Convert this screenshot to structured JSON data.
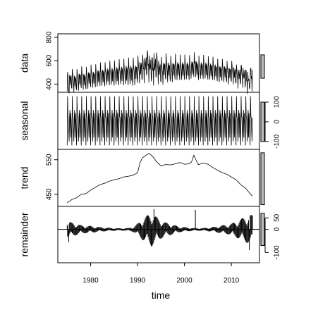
{
  "chart_data": {
    "type": "line",
    "x_axis": {
      "label": "time",
      "range": [
        1973,
        2016
      ],
      "ticks": [
        1980,
        1990,
        2000,
        2010
      ],
      "tick_labels": [
        "1980",
        "1990",
        "2000",
        "2010"
      ]
    },
    "time_start": 1975.0,
    "frequency": 12,
    "seasonal_pattern": [
      -120,
      130,
      30,
      20,
      -50,
      -100,
      20,
      60,
      -80,
      45,
      10,
      -60
    ],
    "panels": [
      {
        "key": "data",
        "label": "data",
        "axis_side": "left",
        "ylim": [
          330,
          830
        ],
        "ticks": [
          400,
          600,
          800
        ],
        "tick_labels": [
          "400",
          "600",
          "800"
        ],
        "scale_bar": [
          450,
          650
        ],
        "kind": "line"
      },
      {
        "key": "seasonal",
        "label": "seasonal",
        "axis_side": "right",
        "ylim": [
          -140,
          150
        ],
        "ticks": [
          -100,
          0,
          100
        ],
        "tick_labels": [
          "-100",
          "0",
          "100"
        ],
        "scale_bar": [
          -100,
          100
        ],
        "kind": "line"
      },
      {
        "key": "trend",
        "label": "trend",
        "axis_side": "left",
        "ylim": [
          415,
          580
        ],
        "ticks": [
          450,
          550
        ],
        "tick_labels": [
          "450",
          "550"
        ],
        "scale_bar": [
          420,
          570
        ],
        "kind": "line"
      },
      {
        "key": "remainder",
        "label": "remainder",
        "axis_side": "right",
        "ylim": [
          -145,
          100
        ],
        "ticks": [
          -100,
          0,
          50
        ],
        "tick_labels": [
          "-100",
          "0",
          "50"
        ],
        "scale_bar": [
          -70,
          70
        ],
        "kind": "bars",
        "baseline": 0
      }
    ],
    "trend": {
      "x": [
        1975.0,
        1976.0,
        1977.0,
        1978.0,
        1979.0,
        1980.0,
        1981.0,
        1982.0,
        1983.0,
        1984.0,
        1985.0,
        1986.0,
        1987.0,
        1988.0,
        1989.0,
        1990.0,
        1990.5,
        1991.0,
        1991.5,
        1992.0,
        1992.5,
        1993.0,
        1993.5,
        1994.0,
        1995.0,
        1996.0,
        1997.0,
        1998.0,
        1999.0,
        2000.0,
        2001.0,
        2001.5,
        2002.0,
        2002.5,
        2003.0,
        2004.0,
        2005.0,
        2006.0,
        2007.0,
        2008.0,
        2009.0,
        2010.0,
        2011.0,
        2012.0,
        2013.0,
        2014.0,
        2014.5
      ],
      "y": [
        425,
        435,
        440,
        450,
        452,
        462,
        470,
        478,
        482,
        488,
        492,
        495,
        500,
        502,
        505,
        512,
        540,
        555,
        560,
        565,
        568,
        562,
        555,
        545,
        532,
        536,
        535,
        538,
        542,
        537,
        538,
        543,
        563,
        548,
        536,
        540,
        537,
        528,
        520,
        513,
        508,
        500,
        492,
        478,
        468,
        452,
        445
      ]
    },
    "remainder_envelope": {
      "x": [
        1975.0,
        1977.0,
        1978.0,
        1980.0,
        1982.0,
        1984.0,
        1986.0,
        1988.0,
        1989.0,
        1990.0,
        1991.0,
        1992.0,
        1993.0,
        1994.0,
        1995.0,
        1996.0,
        1997.0,
        1998.0,
        1999.0,
        2000.0,
        2001.0,
        2002.0,
        2003.0,
        2004.0,
        2006.0,
        2008.0,
        2009.0,
        2010.0,
        2011.0,
        2012.0,
        2013.0,
        2014.0,
        2014.7
      ],
      "y": [
        35,
        25,
        18,
        15,
        10,
        7,
        5,
        6,
        10,
        25,
        45,
        60,
        75,
        55,
        40,
        30,
        25,
        18,
        12,
        10,
        8,
        6,
        6,
        6,
        10,
        18,
        20,
        25,
        35,
        45,
        55,
        65,
        60
      ]
    },
    "remainder_spikes": [
      {
        "x": 1975.3,
        "y": -55
      },
      {
        "x": 1993.5,
        "y": 88
      },
      {
        "x": 2002.3,
        "y": 85
      },
      {
        "x": 2013.8,
        "y": -90
      }
    ]
  }
}
